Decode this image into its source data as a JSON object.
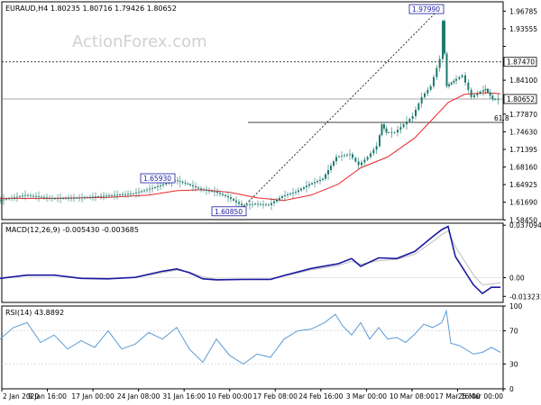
{
  "chart_data": [
    {
      "type": "candlestick",
      "header": "EURAUD,H4  1.80235 1.80716 1.79426 1.80652",
      "watermark": "ActionForex.com",
      "ylim": [
        1.585,
        1.985
      ],
      "yticks": [
        1.96785,
        1.93555,
        1.90315,
        1.8747,
        1.841,
        1.80652,
        1.7787,
        1.7463,
        1.71395,
        1.6816,
        1.64925,
        1.6169,
        1.5845
      ],
      "ytick_labels": [
        "1.96785",
        "1.93555",
        "",
        "1.87470",
        "1.84100",
        "1.80652",
        "1.77870",
        "1.74630",
        "1.71395",
        "1.68160",
        "1.64925",
        "1.61690",
        "1.58450"
      ],
      "highlight_levels": [
        {
          "label": "1.87470",
          "value": 1.8747,
          "style": "dotted"
        },
        {
          "label": "1.80652",
          "value": 1.80652,
          "style": "solid-gray"
        }
      ],
      "fib_label": "61.8",
      "fib_level": 1.7635,
      "annotations": [
        {
          "label": "1.97990",
          "x": 492,
          "y": 1.9799
        },
        {
          "label": "1.65930",
          "x": 196,
          "y": 1.6593
        },
        {
          "label": "1.60850",
          "x": 270,
          "y": 1.6085
        }
      ],
      "trendline": {
        "from": {
          "x": 270,
          "y": 1.6085
        },
        "to": {
          "x": 492,
          "y": 1.9799
        }
      },
      "price_path": [
        [
          0,
          1.62
        ],
        [
          30,
          1.63
        ],
        [
          60,
          1.624
        ],
        [
          90,
          1.625
        ],
        [
          120,
          1.629
        ],
        [
          150,
          1.633
        ],
        [
          165,
          1.64
        ],
        [
          180,
          1.648
        ],
        [
          196,
          1.657
        ],
        [
          210,
          1.65
        ],
        [
          225,
          1.64
        ],
        [
          240,
          1.636
        ],
        [
          255,
          1.626
        ],
        [
          270,
          1.611
        ],
        [
          285,
          1.614
        ],
        [
          300,
          1.612
        ],
        [
          315,
          1.628
        ],
        [
          330,
          1.636
        ],
        [
          345,
          1.65
        ],
        [
          360,
          1.66
        ],
        [
          375,
          1.7
        ],
        [
          390,
          1.705
        ],
        [
          400,
          1.685
        ],
        [
          410,
          1.7
        ],
        [
          420,
          1.72
        ],
        [
          425,
          1.76
        ],
        [
          430,
          1.745
        ],
        [
          440,
          1.745
        ],
        [
          450,
          1.76
        ],
        [
          460,
          1.775
        ],
        [
          470,
          1.81
        ],
        [
          480,
          1.83
        ],
        [
          490,
          1.88
        ],
        [
          492,
          1.95
        ],
        [
          497,
          1.83
        ],
        [
          505,
          1.84
        ],
        [
          515,
          1.85
        ],
        [
          525,
          1.81
        ],
        [
          535,
          1.82
        ],
        [
          540,
          1.825
        ],
        [
          548,
          1.806
        ],
        [
          555,
          1.806
        ]
      ],
      "ma_path": [
        [
          0,
          1.624
        ],
        [
          60,
          1.624
        ],
        [
          120,
          1.626
        ],
        [
          165,
          1.63
        ],
        [
          196,
          1.638
        ],
        [
          225,
          1.64
        ],
        [
          255,
          1.635
        ],
        [
          285,
          1.625
        ],
        [
          315,
          1.62
        ],
        [
          345,
          1.63
        ],
        [
          375,
          1.65
        ],
        [
          400,
          1.68
        ],
        [
          430,
          1.7
        ],
        [
          460,
          1.735
        ],
        [
          480,
          1.77
        ],
        [
          497,
          1.8
        ],
        [
          515,
          1.815
        ],
        [
          540,
          1.818
        ],
        [
          555,
          1.816
        ]
      ]
    },
    {
      "type": "line",
      "header": "MACD(12,26,9) -0.005430 -0.003685",
      "ylim": [
        -0.0175,
        0.0385
      ],
      "yticks": [
        0.037094,
        0.0,
        -0.013231
      ],
      "ytick_labels": [
        "0.037094",
        "0.00",
        "-0.013231"
      ],
      "series": [
        {
          "values_path": [
            [
              0,
              -0.0005
            ],
            [
              30,
              0.0018
            ],
            [
              60,
              0.0018
            ],
            [
              90,
              -0.0005
            ],
            [
              120,
              -0.0008
            ],
            [
              150,
              0.0002
            ],
            [
              180,
              0.0045
            ],
            [
              196,
              0.0062
            ],
            [
              210,
              0.0035
            ],
            [
              225,
              -0.0008
            ],
            [
              240,
              -0.0015
            ],
            [
              270,
              -0.0012
            ],
            [
              300,
              -0.0012
            ],
            [
              315,
              0.0015
            ],
            [
              345,
              0.0065
            ],
            [
              375,
              0.0098
            ],
            [
              390,
              0.0135
            ],
            [
              400,
              0.008
            ],
            [
              420,
              0.014
            ],
            [
              440,
              0.0135
            ],
            [
              460,
              0.0185
            ],
            [
              480,
              0.029
            ],
            [
              490,
              0.034
            ],
            [
              497,
              0.0362
            ],
            [
              505,
              0.015
            ],
            [
              525,
              -0.005
            ],
            [
              535,
              -0.0112
            ],
            [
              545,
              -0.0068
            ],
            [
              555,
              -0.0068
            ]
          ]
        },
        {
          "values_path": [
            [
              0,
              -0.0002
            ],
            [
              30,
              0.0014
            ],
            [
              60,
              0.0016
            ],
            [
              90,
              -0.0002
            ],
            [
              120,
              -0.0005
            ],
            [
              150,
              0.0001
            ],
            [
              180,
              0.0035
            ],
            [
              196,
              0.0054
            ],
            [
              210,
              0.004
            ],
            [
              225,
              0.0005
            ],
            [
              240,
              -0.001
            ],
            [
              270,
              -0.0012
            ],
            [
              300,
              -0.001
            ],
            [
              315,
              0.001
            ],
            [
              345,
              0.0055
            ],
            [
              375,
              0.0085
            ],
            [
              390,
              0.0115
            ],
            [
              400,
              0.0095
            ],
            [
              420,
              0.012
            ],
            [
              440,
              0.013
            ],
            [
              460,
              0.0165
            ],
            [
              480,
              0.0255
            ],
            [
              490,
              0.0305
            ],
            [
              497,
              0.033
            ],
            [
              505,
              0.022
            ],
            [
              525,
              0.002
            ],
            [
              535,
              -0.005
            ],
            [
              545,
              -0.0045
            ],
            [
              555,
              -0.0037
            ]
          ]
        }
      ]
    },
    {
      "type": "line",
      "header": "RSI(14) 43.8892",
      "ylim": [
        0,
        100
      ],
      "yticks": [
        100,
        70,
        30,
        0
      ],
      "ytick_labels": [
        "100",
        "70",
        "30",
        "0"
      ],
      "values_path": [
        [
          0,
          60
        ],
        [
          15,
          74
        ],
        [
          30,
          80
        ],
        [
          45,
          56
        ],
        [
          60,
          65
        ],
        [
          75,
          48
        ],
        [
          90,
          58
        ],
        [
          105,
          50
        ],
        [
          120,
          70
        ],
        [
          135,
          48
        ],
        [
          150,
          54
        ],
        [
          165,
          68
        ],
        [
          180,
          60
        ],
        [
          196,
          74
        ],
        [
          210,
          48
        ],
        [
          225,
          32
        ],
        [
          240,
          60
        ],
        [
          255,
          40
        ],
        [
          270,
          30
        ],
        [
          285,
          42
        ],
        [
          300,
          38
        ],
        [
          315,
          60
        ],
        [
          330,
          70
        ],
        [
          345,
          72
        ],
        [
          360,
          80
        ],
        [
          372,
          90
        ],
        [
          380,
          76
        ],
        [
          390,
          65
        ],
        [
          400,
          80
        ],
        [
          410,
          60
        ],
        [
          420,
          74
        ],
        [
          430,
          60
        ],
        [
          440,
          62
        ],
        [
          450,
          56
        ],
        [
          460,
          66
        ],
        [
          470,
          78
        ],
        [
          480,
          74
        ],
        [
          490,
          80
        ],
        [
          495,
          94
        ],
        [
          500,
          55
        ],
        [
          510,
          52
        ],
        [
          525,
          42
        ],
        [
          535,
          44
        ],
        [
          545,
          50
        ],
        [
          555,
          44
        ]
      ]
    }
  ],
  "x_axis": {
    "labels": [
      "2 Jan 2020",
      "9 Jan 16:00",
      "17 Jan 00:00",
      "24 Jan 08:00",
      "31 Jan 16:00",
      "10 Feb 00:00",
      "17 Feb 08:00",
      "24 Feb 16:00",
      "3 Mar 00:00",
      "10 Mar 08:00",
      "17 Mar 16:00",
      "25 Mar 00:00"
    ]
  },
  "colors": {
    "price": "#1e7a6e",
    "ma": "#e8262a",
    "macd": "#1a1aa0",
    "signal": "#bdbdbd",
    "rsi": "#5b9bd5",
    "axis": "#000000",
    "fib": "#000000",
    "trend": "#000000"
  }
}
